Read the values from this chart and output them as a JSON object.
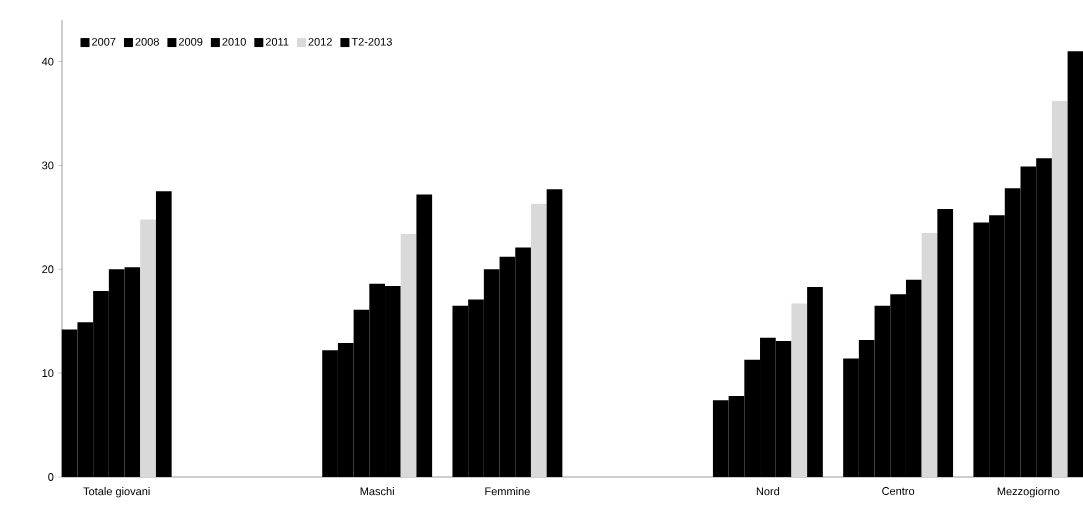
{
  "chart_data": {
    "type": "bar",
    "categories": [
      "Totale giovani",
      null,
      "Maschi",
      "Femmine",
      null,
      "Nord",
      "Centro",
      "Mezzogiorno"
    ],
    "series": [
      {
        "name": "2007",
        "color": "#000000",
        "values": [
          14.2,
          null,
          12.2,
          16.5,
          null,
          7.4,
          11.4,
          24.5
        ]
      },
      {
        "name": "2008",
        "color": "#000000",
        "values": [
          14.9,
          null,
          12.9,
          17.1,
          null,
          7.8,
          13.2,
          25.2
        ]
      },
      {
        "name": "2009",
        "color": "#000000",
        "values": [
          17.9,
          null,
          16.1,
          20.0,
          null,
          11.3,
          16.5,
          27.8
        ]
      },
      {
        "name": "2010",
        "color": "#000000",
        "values": [
          20.0,
          null,
          18.6,
          21.2,
          null,
          13.4,
          17.6,
          29.9
        ]
      },
      {
        "name": "2011",
        "color": "#000000",
        "values": [
          20.2,
          null,
          18.4,
          22.1,
          null,
          13.1,
          19.0,
          30.7
        ]
      },
      {
        "name": "2012",
        "color": "#d9d9d9",
        "values": [
          24.8,
          null,
          23.4,
          26.3,
          null,
          16.7,
          23.5,
          36.2
        ]
      },
      {
        "name": "T2-2013",
        "color": "#000000",
        "values": [
          27.5,
          null,
          27.2,
          27.7,
          null,
          18.3,
          25.8,
          41.0
        ]
      }
    ],
    "ylim": [
      0,
      44
    ],
    "yticks": [
      0,
      10,
      20,
      30,
      40
    ],
    "legend": "top left"
  }
}
